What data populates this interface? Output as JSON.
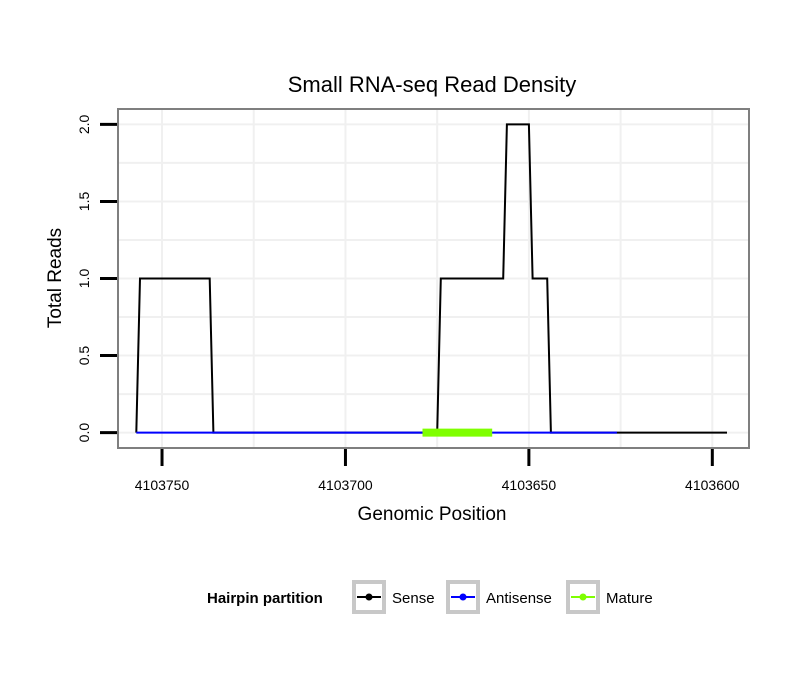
{
  "chart_data": {
    "type": "line",
    "title": "Small RNA-seq Read Density",
    "xlabel": "Genomic Position",
    "ylabel": "Total Reads",
    "x_reversed": true,
    "xlim": [
      4103762,
      4103590
    ],
    "ylim": [
      -0.1,
      2.1
    ],
    "x_ticks": [
      4103750,
      4103700,
      4103650,
      4103600
    ],
    "x_tick_labels": [
      "4103750",
      "4103700",
      "4103650",
      "4103600"
    ],
    "y_ticks": [
      0.0,
      0.5,
      1.0,
      1.5,
      2.0
    ],
    "y_tick_labels": [
      "0.0",
      "0.5",
      "1.0",
      "1.5",
      "2.0"
    ],
    "grid": true,
    "legend": {
      "title": "Hairpin partition",
      "position": "bottom",
      "entries": [
        "Sense",
        "Antisense",
        "Mature"
      ]
    },
    "series": [
      {
        "name": "Sense",
        "color": "#000000",
        "x": [
          4103757,
          4103756,
          4103737,
          4103736,
          4103675,
          4103674,
          4103657,
          4103656,
          4103650,
          4103649,
          4103645,
          4103644,
          4103627,
          4103626,
          4103596
        ],
        "y": [
          0,
          1,
          1,
          0,
          0,
          1,
          1,
          2,
          2,
          1,
          1,
          0,
          0,
          0,
          0
        ]
      },
      {
        "name": "Antisense",
        "color": "#0000ff",
        "x": [
          4103757,
          4103736,
          4103682,
          4103626
        ],
        "y": [
          0,
          0,
          0,
          0
        ]
      },
      {
        "name": "Mature",
        "color": "#7fff00",
        "x": [
          4103679,
          4103660
        ],
        "y": [
          0,
          0
        ]
      }
    ]
  }
}
